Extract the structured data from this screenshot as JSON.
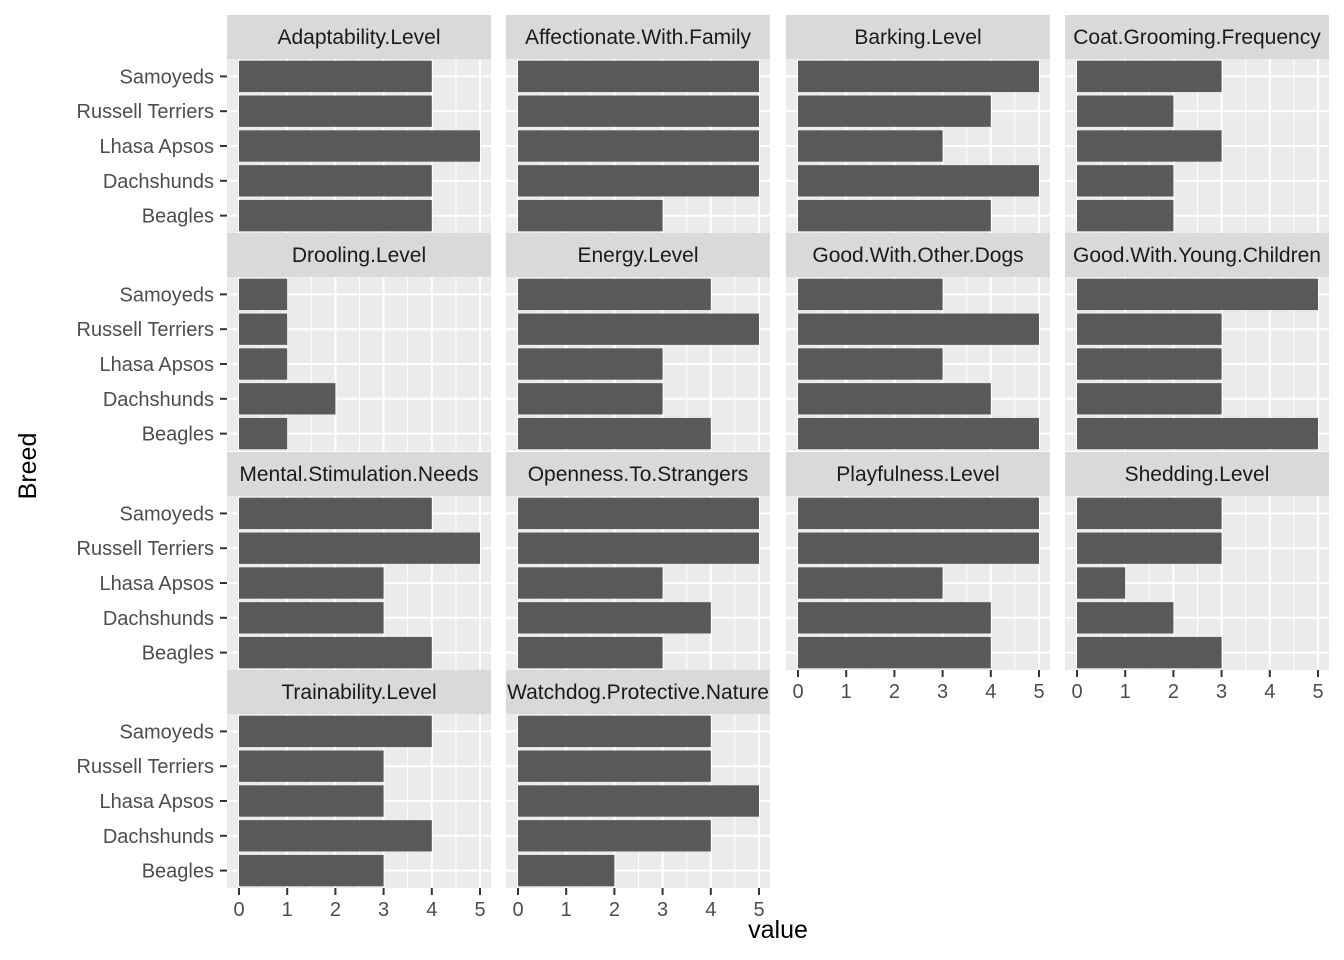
{
  "chart_data": {
    "type": "bar",
    "orientation": "horizontal",
    "xlabel": "value",
    "ylabel": "Breed",
    "xlim": [
      0,
      5
    ],
    "x_ticks": [
      0,
      1,
      2,
      3,
      4,
      5
    ],
    "categories": [
      "Beagles",
      "Dachshunds",
      "Lhasa Apsos",
      "Russell Terriers",
      "Samoyeds"
    ],
    "colors": {
      "bar": "#595959",
      "panel_bg": "#ebebeb",
      "strip_bg": "#d9d9d9",
      "grid": "#ffffff"
    },
    "grid": true,
    "facets": [
      {
        "name": "Adaptability.Level",
        "values": [
          4,
          4,
          5,
          4,
          4
        ]
      },
      {
        "name": "Affectionate.With.Family",
        "values": [
          3,
          5,
          5,
          5,
          5
        ]
      },
      {
        "name": "Barking.Level",
        "values": [
          4,
          5,
          3,
          4,
          5
        ]
      },
      {
        "name": "Coat.Grooming.Frequency",
        "values": [
          2,
          2,
          3,
          2,
          3
        ]
      },
      {
        "name": "Drooling.Level",
        "values": [
          1,
          2,
          1,
          1,
          1
        ]
      },
      {
        "name": "Energy.Level",
        "values": [
          4,
          3,
          3,
          5,
          4
        ]
      },
      {
        "name": "Good.With.Other.Dogs",
        "values": [
          5,
          4,
          3,
          5,
          3
        ]
      },
      {
        "name": "Good.With.Young.Children",
        "values": [
          5,
          3,
          3,
          3,
          5
        ]
      },
      {
        "name": "Mental.Stimulation.Needs",
        "values": [
          4,
          3,
          3,
          5,
          4
        ]
      },
      {
        "name": "Openness.To.Strangers",
        "values": [
          3,
          4,
          3,
          5,
          5
        ]
      },
      {
        "name": "Playfulness.Level",
        "values": [
          4,
          4,
          3,
          5,
          5
        ]
      },
      {
        "name": "Shedding.Level",
        "values": [
          3,
          2,
          1,
          3,
          3
        ]
      },
      {
        "name": "Trainability.Level",
        "values": [
          3,
          4,
          3,
          3,
          4
        ]
      },
      {
        "name": "Watchdog.Protective.Nature",
        "values": [
          2,
          4,
          5,
          4,
          4
        ]
      }
    ]
  }
}
